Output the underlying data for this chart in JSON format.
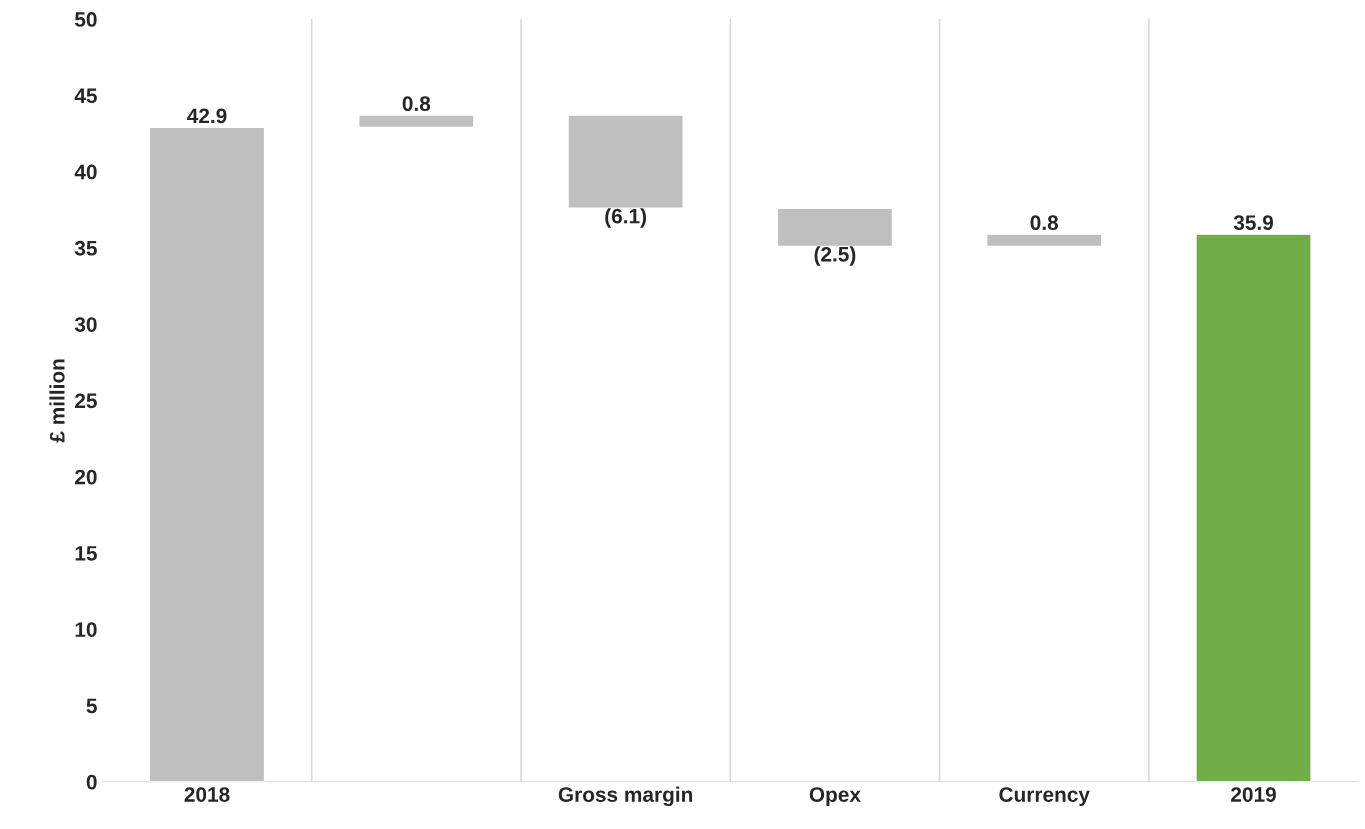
{
  "chart_data": {
    "type": "bar",
    "ylabel": "£ million",
    "categories": [
      "2018",
      null,
      "Gross margin",
      "Opex",
      "Currency",
      "2019"
    ],
    "values": [
      42.9,
      0.8,
      -6.1,
      -2.5,
      0.8,
      35.9
    ],
    "base": [
      0,
      42.9,
      43.7,
      37.6,
      35.1,
      0
    ],
    "colors": [
      "#bfbfbf",
      "#bfbfbf",
      "#bfbfbf",
      "#bfbfbf",
      "#bfbfbf",
      "#70ad47"
    ],
    "value_labels": [
      "42.9",
      "0.8",
      "(6.1)",
      "(2.5)",
      "0.8",
      "35.9"
    ],
    "ylim": [
      0,
      50
    ],
    "yticks": [
      0,
      5,
      10,
      15,
      20,
      25,
      30,
      35,
      40,
      45,
      50
    ],
    "grid": "x",
    "legend": false
  }
}
